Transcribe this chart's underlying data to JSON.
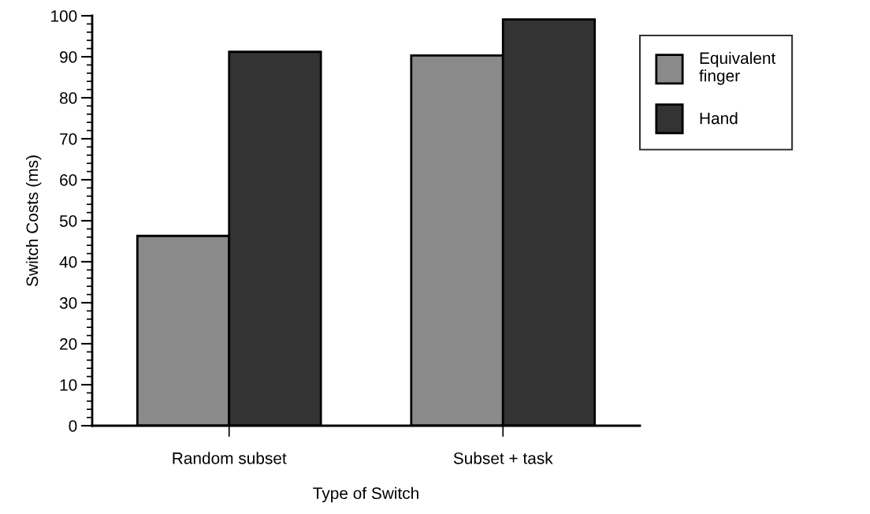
{
  "chart_data": {
    "type": "bar",
    "xlabel": "Type of Switch",
    "ylabel": "Switch Costs (ms)",
    "categories": [
      "Random subset",
      "Subset + task"
    ],
    "series": [
      {
        "name": "Equivalent\nfinger",
        "color": "#8a8a8a",
        "values": [
          46.3,
          90.3
        ]
      },
      {
        "name": "Hand",
        "color": "#333333",
        "values": [
          91.2,
          99.1
        ]
      }
    ],
    "ylim": [
      0,
      100
    ],
    "yticks": [
      0,
      10,
      20,
      30,
      40,
      50,
      60,
      70,
      80,
      90,
      100
    ],
    "grid": false,
    "legend": "top right"
  }
}
